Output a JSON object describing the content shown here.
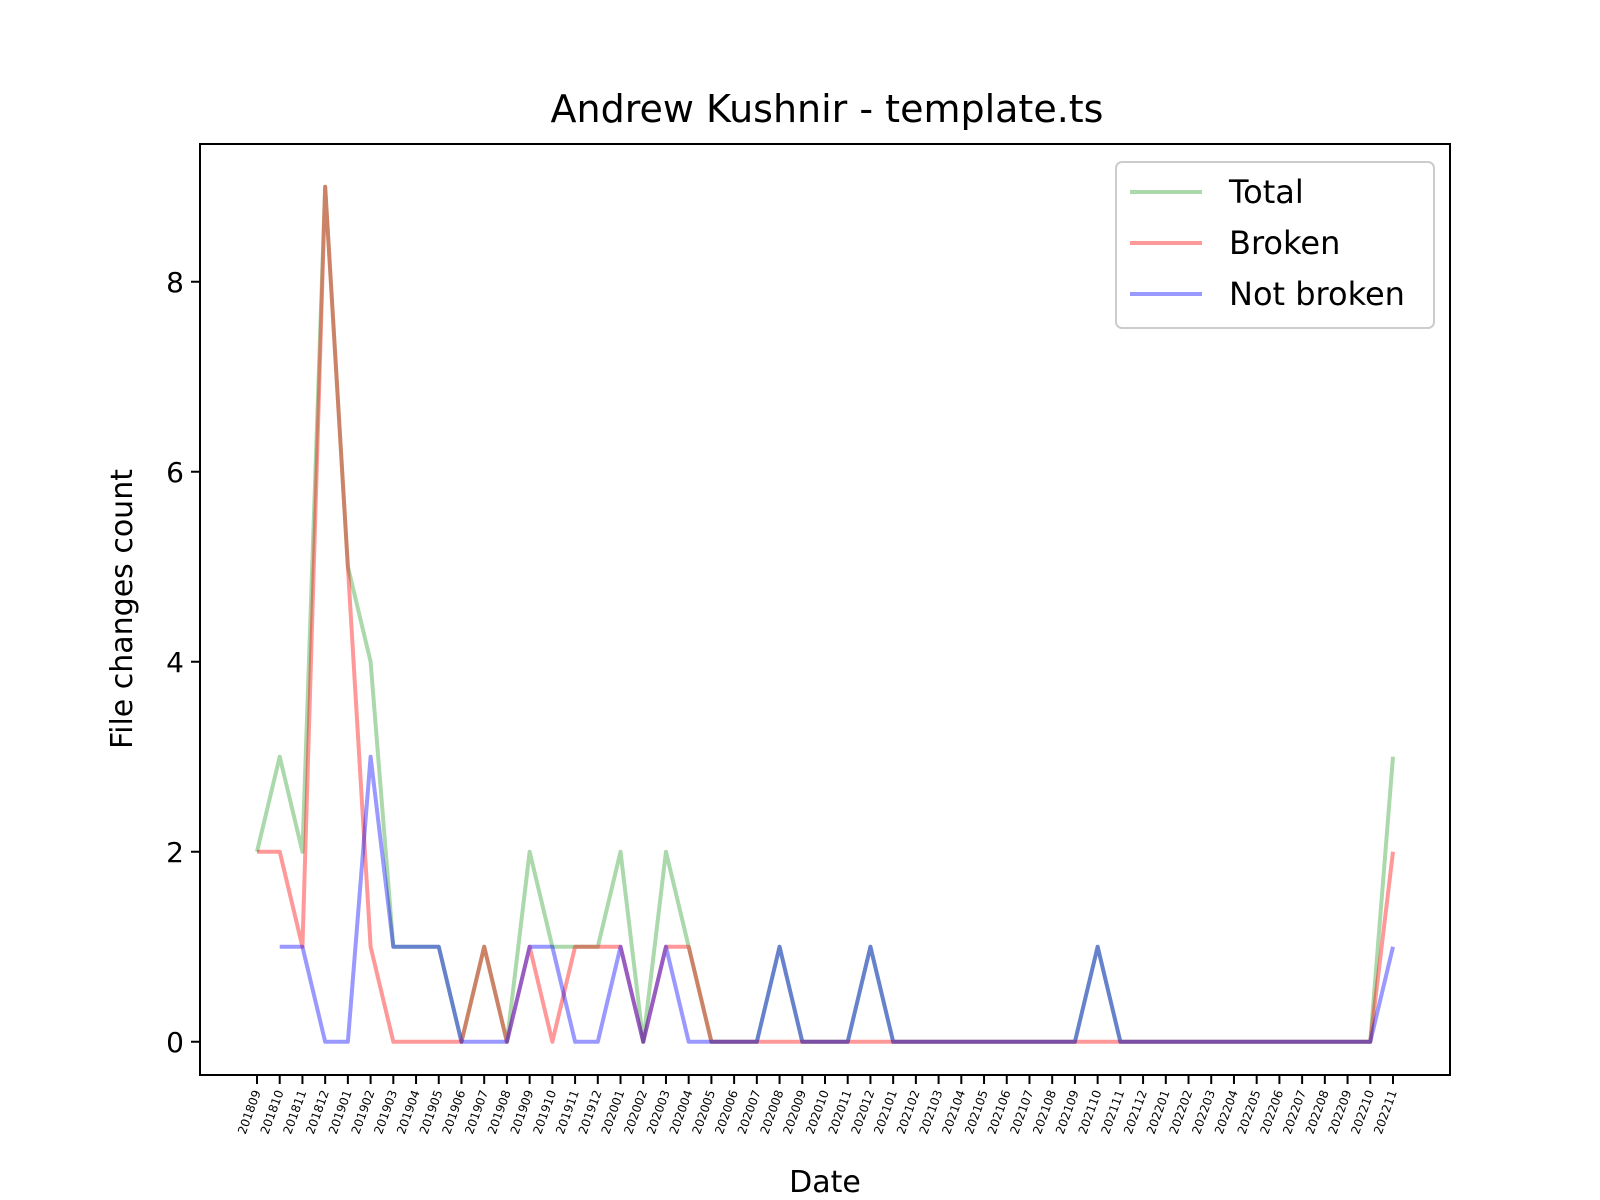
{
  "chart_data": {
    "type": "line",
    "title": "Andrew Kushnir - template.ts",
    "xlabel": "Date",
    "ylabel": "File changes count",
    "ylim": [
      -0.35,
      9.45
    ],
    "yticks": [
      0,
      2,
      4,
      6,
      8
    ],
    "grid": false,
    "legend_position": "top-right",
    "categories": [
      "201809",
      "201810",
      "201811",
      "201812",
      "201901",
      "201902",
      "201903",
      "201904",
      "201905",
      "201906",
      "201907",
      "201908",
      "201909",
      "201910",
      "201911",
      "201912",
      "202001",
      "202002",
      "202003",
      "202004",
      "202005",
      "202006",
      "202007",
      "202008",
      "202009",
      "202010",
      "202011",
      "202012",
      "202101",
      "202102",
      "202103",
      "202104",
      "202105",
      "202106",
      "202107",
      "202108",
      "202109",
      "202110",
      "202111",
      "202112",
      "202201",
      "202202",
      "202203",
      "202204",
      "202205",
      "202206",
      "202207",
      "202208",
      "202209",
      "202210",
      "202211"
    ],
    "series": [
      {
        "name": "Total",
        "color": "#2ca02c",
        "values": [
          2,
          3,
          2,
          9,
          5,
          4,
          1,
          1,
          1,
          0,
          1,
          0,
          2,
          1,
          1,
          1,
          2,
          0,
          2,
          1,
          0,
          0,
          0,
          1,
          0,
          0,
          0,
          1,
          0,
          0,
          0,
          0,
          0,
          0,
          0,
          0,
          0,
          1,
          0,
          0,
          0,
          0,
          0,
          0,
          0,
          0,
          0,
          0,
          0,
          0,
          3
        ]
      },
      {
        "name": "Broken",
        "color": "#ff0000",
        "values": [
          2,
          2,
          1,
          9,
          5,
          1,
          0,
          0,
          0,
          0,
          1,
          0,
          1,
          0,
          1,
          1,
          1,
          0,
          1,
          1,
          0,
          0,
          0,
          0,
          0,
          0,
          0,
          0,
          0,
          0,
          0,
          0,
          0,
          0,
          0,
          0,
          0,
          0,
          0,
          0,
          0,
          0,
          0,
          0,
          0,
          0,
          0,
          0,
          0,
          0,
          2
        ]
      },
      {
        "name": "Not broken",
        "color": "#0000ff",
        "values": [
          null,
          1,
          1,
          0,
          0,
          3,
          1,
          1,
          1,
          0,
          0,
          0,
          1,
          1,
          0,
          0,
          1,
          0,
          1,
          0,
          0,
          0,
          0,
          1,
          0,
          0,
          0,
          1,
          0,
          0,
          0,
          0,
          0,
          0,
          0,
          0,
          0,
          1,
          0,
          0,
          0,
          0,
          0,
          0,
          0,
          0,
          0,
          0,
          0,
          0,
          1
        ]
      }
    ]
  }
}
